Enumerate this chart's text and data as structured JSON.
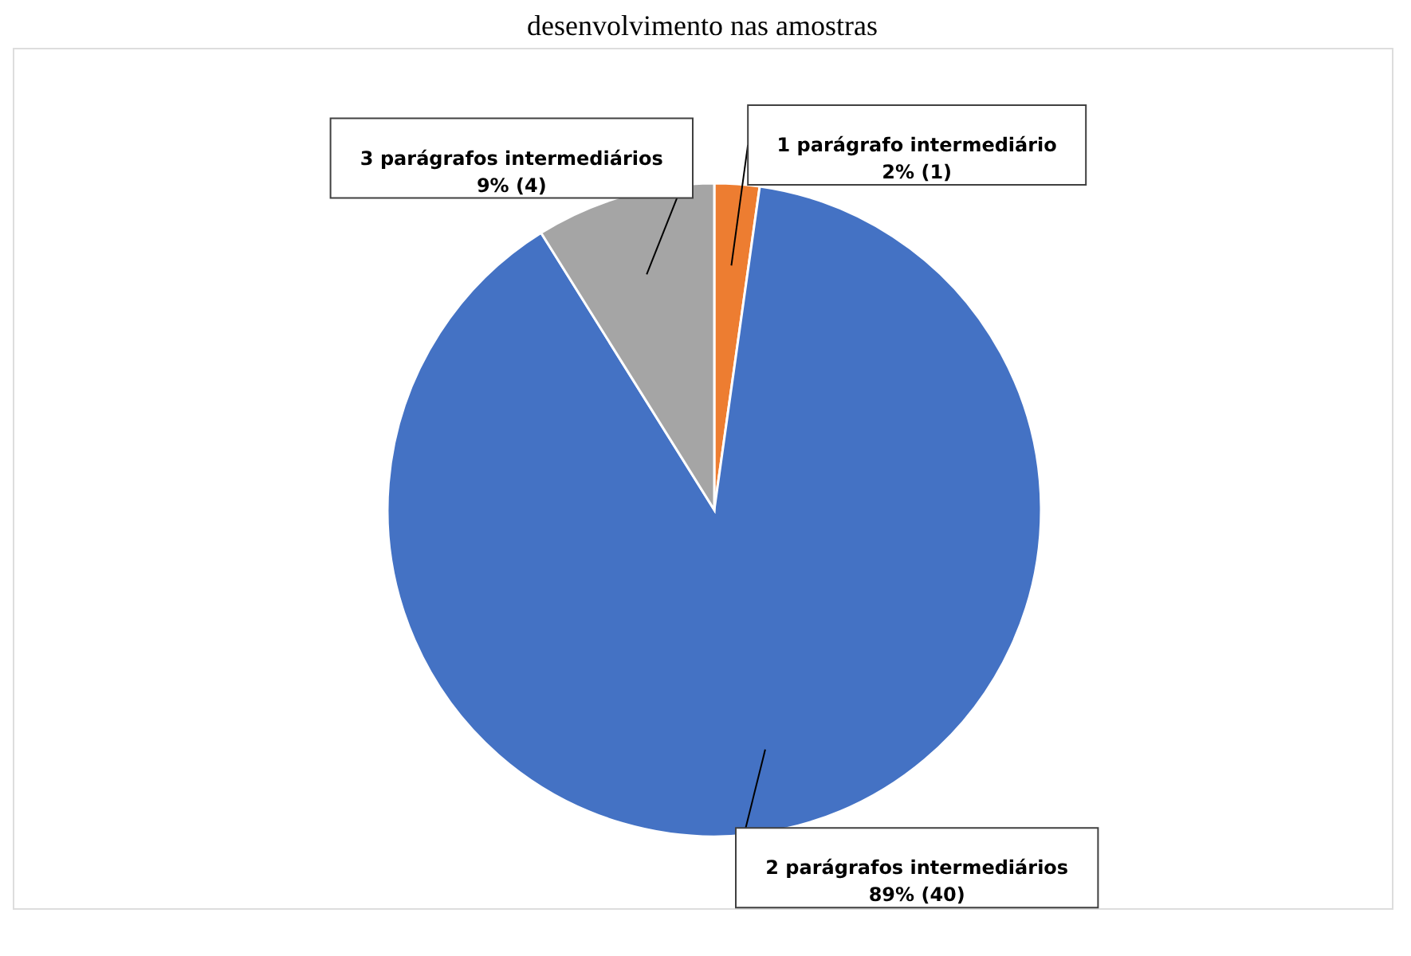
{
  "chart_data": {
    "type": "pie",
    "title": "desenvolvimento nas amostras",
    "categories": [
      "1 parágrafo intermediário",
      "2 parágrafos intermediários",
      "3 parágrafos intermediários"
    ],
    "values": [
      1,
      40,
      4
    ],
    "value_labels": [
      "2% (1)",
      "89% (40)",
      "9% (4)"
    ],
    "colors": [
      "#ed7d31",
      "#4472c4",
      "#a5a5a5"
    ],
    "legend": false
  }
}
